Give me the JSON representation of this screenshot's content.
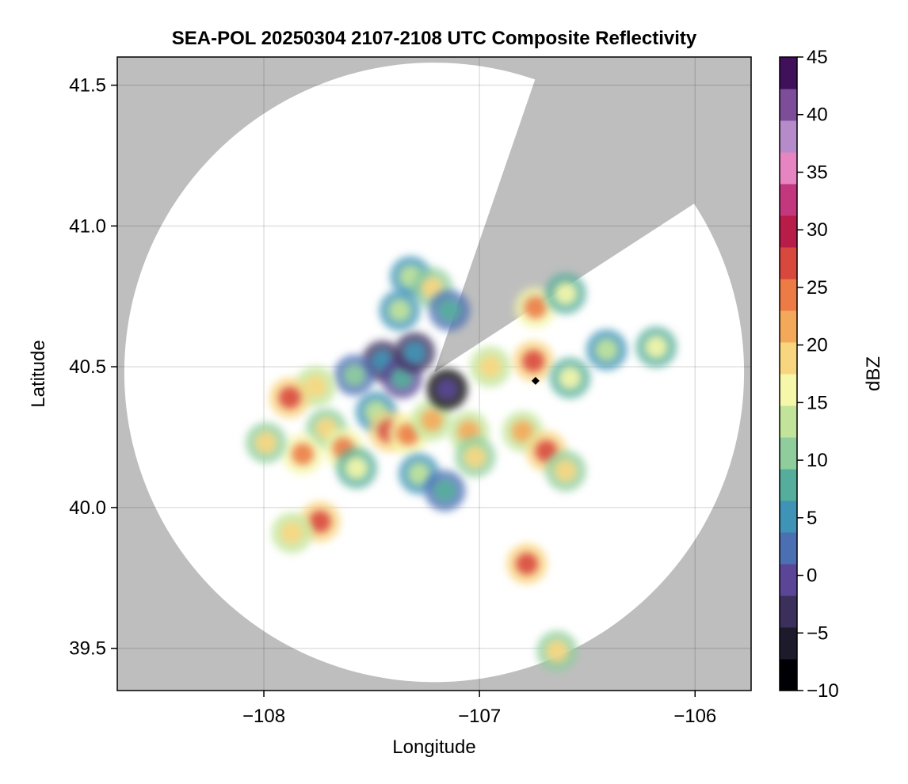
{
  "chart_data": {
    "type": "heatmap",
    "title": "SEA-POL 20250304 2107-2108 UTC Composite Reflectivity",
    "xlabel": "Longitude",
    "ylabel": "Latitude",
    "xlim": [
      -108.68,
      -105.74
    ],
    "ylim": [
      39.35,
      41.6
    ],
    "xticks": [
      -108,
      -107,
      -106
    ],
    "xtick_labels": [
      "−108",
      "−107",
      "−106"
    ],
    "yticks": [
      39.5,
      40.0,
      40.5,
      41.0,
      41.5
    ],
    "ytick_labels": [
      "39.5",
      "40.0",
      "40.5",
      "41.0",
      "41.5"
    ],
    "grid": true,
    "no_coverage_color": "#bebebe",
    "radar": {
      "center_lon": -107.21,
      "center_lat": 40.48,
      "range_lat_deg": 1.1,
      "blocked_sector_deg": [
        19,
        57
      ]
    },
    "marker": {
      "lon": -106.74,
      "lat": 40.45,
      "shape": "diamond",
      "color": "#000000"
    },
    "colorbar": {
      "label": "dBZ",
      "colormap": "spectral",
      "range": [
        -10,
        45
      ],
      "ticks": [
        -10,
        -5,
        0,
        5,
        10,
        15,
        20,
        25,
        30,
        35,
        40,
        45
      ],
      "tick_labels": [
        "−10",
        "−5",
        "0",
        "5",
        "10",
        "15",
        "20",
        "25",
        "30",
        "35",
        "40",
        "45"
      ],
      "colors": [
        "#000004",
        "#1c1a2b",
        "#3b2f5b",
        "#5a4596",
        "#4b6fb3",
        "#3f93b6",
        "#54ae9b",
        "#8fcd9c",
        "#c2e49a",
        "#f6f7a9",
        "#f8d67f",
        "#f4a95a",
        "#ec7b45",
        "#d8483d",
        "#b81c48",
        "#c2377d",
        "#e685c1",
        "#b68bc9",
        "#7d4d9a",
        "#40105a"
      ]
    },
    "echo_cells": [
      {
        "lon": -107.48,
        "lat": 40.34,
        "dbz": 12
      },
      {
        "lon": -107.42,
        "lat": 40.27,
        "dbz": 26
      },
      {
        "lon": -107.33,
        "lat": 40.26,
        "dbz": 24
      },
      {
        "lon": -107.22,
        "lat": 40.31,
        "dbz": 21
      },
      {
        "lon": -107.05,
        "lat": 40.27,
        "dbz": 22
      },
      {
        "lon": -107.15,
        "lat": 40.42,
        "dbz": 0
      },
      {
        "lon": -107.45,
        "lat": 40.52,
        "dbz": 6
      },
      {
        "lon": -107.36,
        "lat": 40.46,
        "dbz": 8
      },
      {
        "lon": -107.3,
        "lat": 40.55,
        "dbz": 5
      },
      {
        "lon": -107.58,
        "lat": 40.47,
        "dbz": 11
      },
      {
        "lon": -107.76,
        "lat": 40.43,
        "dbz": 20
      },
      {
        "lon": -107.88,
        "lat": 40.39,
        "dbz": 27
      },
      {
        "lon": -107.71,
        "lat": 40.28,
        "dbz": 19
      },
      {
        "lon": -107.63,
        "lat": 40.21,
        "dbz": 23
      },
      {
        "lon": -107.82,
        "lat": 40.19,
        "dbz": 24
      },
      {
        "lon": -107.57,
        "lat": 40.14,
        "dbz": 15
      },
      {
        "lon": -107.28,
        "lat": 40.12,
        "dbz": 12
      },
      {
        "lon": -107.16,
        "lat": 40.06,
        "dbz": 9
      },
      {
        "lon": -107.02,
        "lat": 40.18,
        "dbz": 19
      },
      {
        "lon": -106.8,
        "lat": 40.27,
        "dbz": 22
      },
      {
        "lon": -106.69,
        "lat": 40.2,
        "dbz": 27
      },
      {
        "lon": -106.6,
        "lat": 40.13,
        "dbz": 18
      },
      {
        "lon": -106.95,
        "lat": 40.5,
        "dbz": 20
      },
      {
        "lon": -106.75,
        "lat": 40.52,
        "dbz": 26
      },
      {
        "lon": -106.58,
        "lat": 40.46,
        "dbz": 16
      },
      {
        "lon": -106.74,
        "lat": 40.71,
        "dbz": 24
      },
      {
        "lon": -106.6,
        "lat": 40.76,
        "dbz": 15
      },
      {
        "lon": -107.32,
        "lat": 40.82,
        "dbz": 14
      },
      {
        "lon": -107.22,
        "lat": 40.78,
        "dbz": 18
      },
      {
        "lon": -107.14,
        "lat": 40.7,
        "dbz": 9
      },
      {
        "lon": -107.37,
        "lat": 40.7,
        "dbz": 12
      },
      {
        "lon": -106.78,
        "lat": 39.8,
        "dbz": 28
      },
      {
        "lon": -107.74,
        "lat": 39.95,
        "dbz": 27
      },
      {
        "lon": -107.87,
        "lat": 39.91,
        "dbz": 20
      },
      {
        "lon": -106.64,
        "lat": 39.49,
        "dbz": 18
      },
      {
        "lon": -106.18,
        "lat": 40.57,
        "dbz": 17
      },
      {
        "lon": -107.99,
        "lat": 40.23,
        "dbz": 18
      },
      {
        "lon": -106.41,
        "lat": 40.56,
        "dbz": 12
      }
    ]
  }
}
